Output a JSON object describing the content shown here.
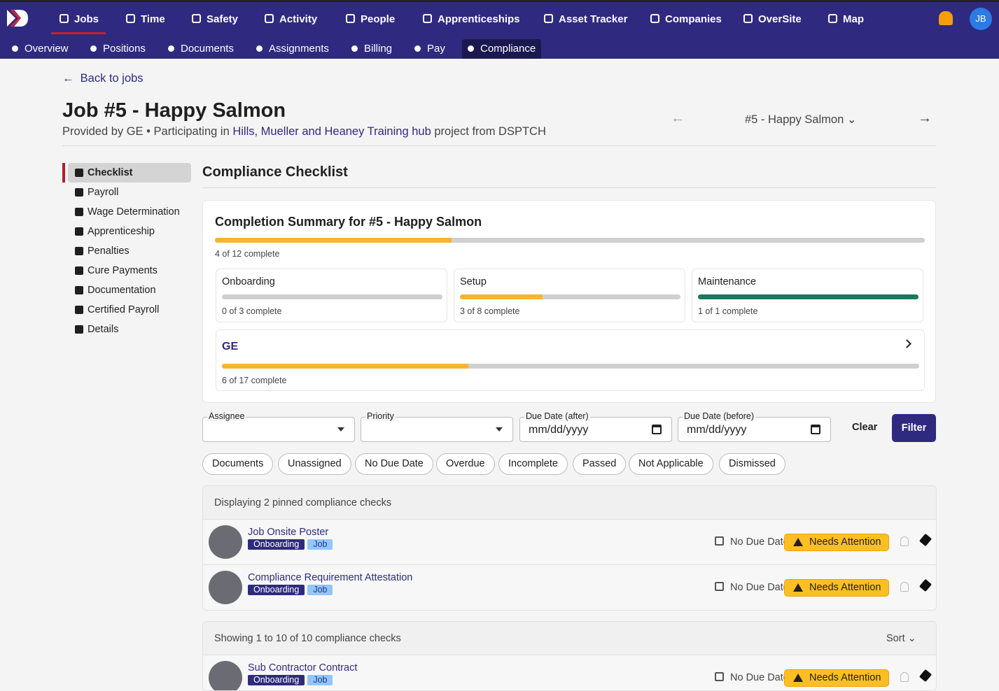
{
  "nav": {
    "items": [
      "Jobs",
      "Time",
      "Safety",
      "Activity",
      "People",
      "Apprenticeships",
      "Asset Tracker",
      "Companies",
      "OverSite",
      "Map"
    ],
    "avatar": "JB"
  },
  "subnav": [
    "Overview",
    "Positions",
    "Documents",
    "Assignments",
    "Billing",
    "Pay",
    "Compliance"
  ],
  "back": "Back to jobs",
  "header": {
    "title": "Job #5 - Happy Salmon",
    "provided": "Provided by GE",
    "participating": "Participating in",
    "project_link": "Hills, Mueller and Heaney Training hub",
    "project_suffix": "project from DSPTCH",
    "switcher": "#5 - Happy Salmon"
  },
  "sidebar": [
    "Checklist",
    "Payroll",
    "Wage Determination",
    "Apprenticeship",
    "Penalties",
    "Cure Payments",
    "Documentation",
    "Certified Payroll",
    "Details"
  ],
  "section_title": "Compliance Checklist",
  "summary": {
    "title": "Completion Summary for #5 - Happy Salmon",
    "done": 4,
    "total": 12,
    "label": "4 of 12 complete",
    "color": "#f8b431",
    "groups": [
      {
        "name": "Onboarding",
        "done": 0,
        "total": 3,
        "label": "0 of 3 complete",
        "color": "#f8b431"
      },
      {
        "name": "Setup",
        "done": 3,
        "total": 8,
        "label": "3 of 8 complete",
        "color": "#f8b431"
      },
      {
        "name": "Maintenance",
        "done": 1,
        "total": 1,
        "label": "1 of 1 complete",
        "color": "#177a5b"
      }
    ],
    "company": {
      "name": "GE",
      "done": 6,
      "total": 17,
      "label": "6 of 17 complete",
      "color": "#f8b431"
    }
  },
  "filters": {
    "assignee": "Assignee",
    "priority": "Priority",
    "due_after": "Due Date (after)",
    "due_before": "Due Date (before)",
    "date_placeholder": "mm/dd/yyyy",
    "clear": "Clear",
    "filter": "Filter"
  },
  "chips": [
    "Documents",
    "Unassigned",
    "No Due Date",
    "Overdue",
    "Incomplete",
    "Passed",
    "Not Applicable",
    "Dismissed"
  ],
  "pinned": {
    "heading": "Displaying 2 pinned compliance checks",
    "items": [
      {
        "title": "Job Onsite Poster",
        "tags": [
          "Onboarding",
          "Job"
        ],
        "due": "No Due Date",
        "status": "Needs Attention"
      },
      {
        "title": "Compliance Requirement Attestation",
        "tags": [
          "Onboarding",
          "Job"
        ],
        "due": "No Due Date",
        "status": "Needs Attention"
      }
    ]
  },
  "list": {
    "heading": "Showing 1 to 10 of 10 compliance checks",
    "sort": "Sort",
    "items": [
      {
        "title": "Sub Contractor Contract",
        "tags": [
          "Onboarding",
          "Job"
        ],
        "due": "No Due Date",
        "status": "Needs Attention"
      }
    ]
  }
}
